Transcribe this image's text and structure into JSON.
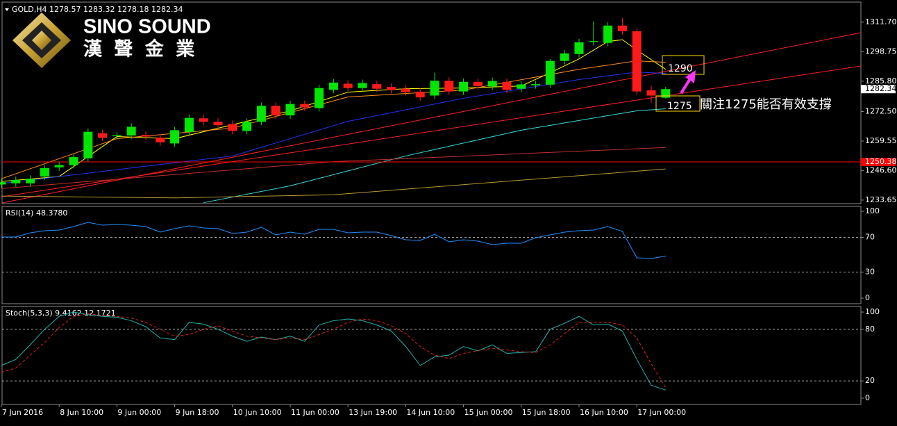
{
  "logo": {
    "name": "SINO SOUND",
    "chinese": "漢 聲 金 業"
  },
  "chart_data": [
    {
      "type": "candlestick",
      "title": "GOLD,H4  1278.57 1283.32 1278.18 1282.34",
      "categories": [
        "7 Jun 2016",
        null,
        null,
        null,
        "8 Jun 10:00",
        null,
        null,
        null,
        "9 Jun 00:00",
        null,
        null,
        null,
        "9 Jun 18:00",
        null,
        null,
        null,
        "10 Jun 10:00",
        null,
        null,
        null,
        "11 Jun 00:00",
        null,
        null,
        null,
        "13 Jun 19:00",
        null,
        null,
        null,
        "14 Jun 10:00",
        null,
        null,
        null,
        "15 Jun 00:00",
        null,
        null,
        null,
        "15 Jun 18:00",
        null,
        null,
        null,
        "16 Jun 10:00",
        null,
        null,
        null,
        "17 Jun 00:00",
        null,
        null
      ],
      "open": [
        1240.5,
        1241,
        1241,
        1244,
        1248,
        1249,
        1252,
        1263,
        1261.8,
        1262,
        1262.2,
        1261,
        1258.5,
        1263.5,
        1269.5,
        1268,
        1267,
        1264,
        1268,
        1275,
        1270.8,
        1275.8,
        1274,
        1282,
        1284.7,
        1282.8,
        1284.5,
        1283.3,
        1282.5,
        1281.2,
        1279.5,
        1286,
        1281.3,
        1285.5,
        1283.5,
        1285.5,
        1282.5,
        1284,
        1284.3,
        1294.7,
        1297.7,
        1303,
        1302.6,
        1310.2,
        1307.7,
        1281.8,
        1278.57
      ],
      "high": [
        1243,
        1244,
        1244.5,
        1249,
        1250.5,
        1254,
        1265,
        1264.5,
        1263.5,
        1267.3,
        1263.7,
        1262.5,
        1265.8,
        1271.2,
        1271,
        1269.5,
        1268.5,
        1269.5,
        1276.5,
        1276.5,
        1277.3,
        1277.3,
        1284.3,
        1286.7,
        1286.2,
        1286.5,
        1286,
        1284.8,
        1284,
        1282.7,
        1289.5,
        1287.5,
        1287,
        1287,
        1287.4,
        1287,
        1285.9,
        1286,
        1295.5,
        1299.5,
        1304.4,
        1312,
        1311.7,
        1313.5,
        1309,
        1283.8,
        1283.32
      ],
      "low": [
        1239,
        1239.5,
        1239.5,
        1242.5,
        1246.5,
        1247.5,
        1250.5,
        1259.5,
        1260.3,
        1260.5,
        1260,
        1257.5,
        1257,
        1262,
        1266.5,
        1265,
        1262.5,
        1262.5,
        1266.5,
        1269.3,
        1269.3,
        1272.8,
        1272.5,
        1280.5,
        1281.3,
        1281.3,
        1281,
        1280.4,
        1279.5,
        1277.2,
        1278,
        1279.8,
        1279.8,
        1282.2,
        1282,
        1280.5,
        1281,
        1282.5,
        1282.8,
        1293.2,
        1296.2,
        1301.5,
        1301.1,
        1306.2,
        1279.8,
        1276.5,
        1278.18
      ],
      "close": [
        1241.5,
        1242.5,
        1243,
        1247.7,
        1249,
        1252.5,
        1263.6,
        1261,
        1262.2,
        1265.8,
        1261.5,
        1259,
        1264.3,
        1269.7,
        1268,
        1266.5,
        1264,
        1268,
        1275,
        1270.8,
        1275.8,
        1274.3,
        1282.8,
        1285.2,
        1282.8,
        1285,
        1282.5,
        1281.9,
        1281,
        1278.7,
        1286,
        1281.3,
        1285.5,
        1283.7,
        1285.9,
        1282,
        1284.4,
        1284.5,
        1294.7,
        1298,
        1302.9,
        1303.4,
        1310.2,
        1307.7,
        1281.3,
        1279.5,
        1282.34
      ],
      "up_color": "#00e600",
      "down_color": "#ff1a1a",
      "ylim": [
        1232.1,
        1320.5
      ],
      "yticks": [
        {
          "value": 1311.7,
          "label": "1311.70"
        },
        {
          "value": 1298.75,
          "label": "1298.75"
        },
        {
          "value": 1285.8,
          "label": "1285.80"
        },
        {
          "value": 1272.5,
          "label": "1272.50"
        },
        {
          "value": 1259.55,
          "label": "1259.55"
        },
        {
          "value": 1246.6,
          "label": "1246.60"
        },
        {
          "value": 1233.65,
          "label": "1233.65"
        }
      ],
      "series": [
        {
          "color": "#ffff00",
          "x": [
            0,
            4,
            8,
            12,
            16,
            20,
            24,
            28,
            32,
            36,
            38,
            40,
            42,
            43,
            44,
            46
          ],
          "values": [
            1241.8,
            1244,
            1261.5,
            1260.6,
            1266.7,
            1272.8,
            1281,
            1282.5,
            1282.8,
            1283.7,
            1289.5,
            1295.6,
            1303.2,
            1304,
            1299.5,
            1291
          ]
        },
        {
          "color": "#ff8c1a",
          "x": [
            0,
            8,
            16,
            24,
            32,
            40,
            44,
            46
          ],
          "values": [
            1243,
            1260.6,
            1265.2,
            1278.9,
            1281.9,
            1291,
            1294.7,
            1294.1
          ]
        },
        {
          "color": "#2233ff",
          "x": [
            0,
            8,
            16,
            24,
            32,
            40,
            44,
            46
          ],
          "values": [
            1240.9,
            1247,
            1253,
            1268.2,
            1278.3,
            1286.5,
            1289.8,
            1289.2
          ]
        },
        {
          "color": "#33dddd",
          "x": [
            14,
            20,
            28,
            36,
            42,
            44,
            46
          ],
          "values": [
            1232.5,
            1239.9,
            1253,
            1264.3,
            1270.7,
            1272.8,
            1273.7
          ]
        },
        {
          "color": "#c0302a",
          "x": [
            0,
            23,
            46
          ],
          "values": [
            1238.7,
            1250.5,
            1256.7
          ]
        },
        {
          "color": "#b89a2a",
          "x": [
            0,
            12,
            23,
            46
          ],
          "values": [
            1235.4,
            1234.6,
            1236,
            1247.3
          ]
        }
      ],
      "hline": {
        "value": 1250.38,
        "label": "1250.38",
        "color": "#ff0000"
      },
      "last_price": {
        "value": 1282.34,
        "label": "1282.34"
      },
      "annotations": {
        "resistance": "1290",
        "support": "1275",
        "note": "關注1275能否有效支撐"
      }
    },
    {
      "type": "line",
      "title": "RSI(14) 48.3780",
      "ylim": [
        -6.4,
        105.6
      ],
      "yticks": [
        100,
        70,
        30,
        0
      ],
      "levels": [
        70,
        30
      ],
      "series": [
        {
          "color": "#1e90ff",
          "values": [
            70.4,
            70.4,
            75.2,
            77.6,
            78.4,
            82.4,
            87.2,
            84,
            84.8,
            84,
            82.4,
            76,
            80,
            83.2,
            80.8,
            80,
            74.4,
            76,
            81.6,
            72.8,
            76,
            73.6,
            79.2,
            79.2,
            75.2,
            76,
            76,
            72,
            67.2,
            66.4,
            73.6,
            64.8,
            67.2,
            65.6,
            61.6,
            63.2,
            63.2,
            69.6,
            72.8,
            76,
            77.6,
            78.4,
            82.4,
            76.8,
            46.4,
            45.6,
            48.378
          ]
        }
      ]
    },
    {
      "type": "line",
      "title": "Stoch(5,3,3) 9.4162 12.1721",
      "ylim": [
        -7.3,
        106.5
      ],
      "yticks": [
        100,
        80,
        20,
        0
      ],
      "levels": [
        80,
        20
      ],
      "series": [
        {
          "color": "#20b2aa",
          "dash": false,
          "values": [
            38,
            45,
            62,
            80,
            95,
            100,
            97,
            95,
            94,
            90,
            83,
            70,
            68,
            88,
            86,
            80,
            72,
            66,
            71,
            68,
            72,
            66,
            85,
            90,
            92,
            90,
            85,
            78,
            60,
            38,
            48,
            50,
            60,
            55,
            62,
            52,
            53,
            54,
            80,
            87,
            95,
            85,
            86,
            78,
            45,
            15,
            9.4162
          ]
        },
        {
          "color": "#e02020",
          "dash": true,
          "values": [
            30,
            35,
            50,
            65,
            82,
            95,
            98,
            96,
            95,
            93,
            88,
            80,
            72,
            74,
            80,
            84,
            78,
            72,
            70,
            68,
            70,
            68,
            74,
            80,
            88,
            92,
            90,
            84,
            75,
            60,
            50,
            46,
            52,
            55,
            58,
            56,
            54,
            53,
            62,
            75,
            88,
            88,
            88,
            85,
            70,
            40,
            12.1721
          ]
        }
      ]
    }
  ]
}
